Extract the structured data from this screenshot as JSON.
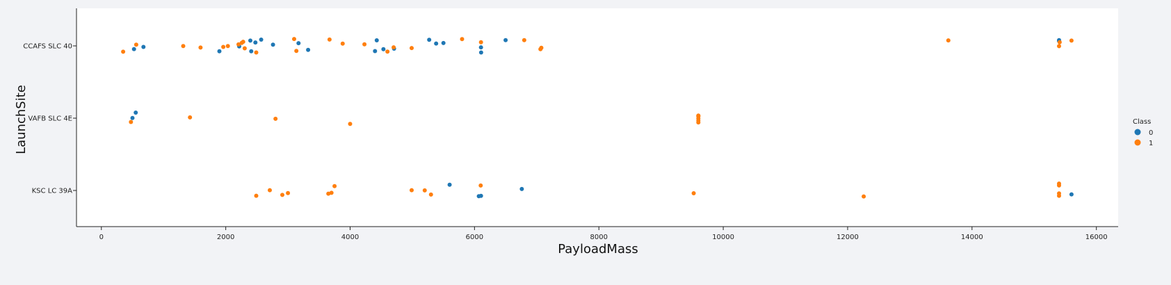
{
  "chart_data": {
    "type": "scatter",
    "title": "",
    "xlabel": "PayloadMass",
    "ylabel": "LaunchSite",
    "xlim": [
      -400,
      16350
    ],
    "x_ticks": [
      "0",
      "2000",
      "4000",
      "6000",
      "8000",
      "10000",
      "12000",
      "14000",
      "16000"
    ],
    "x_tick_values": [
      0,
      2000,
      4000,
      6000,
      8000,
      10000,
      12000,
      14000,
      16000
    ],
    "categories": [
      "CCAFS SLC 40",
      "VAFB SLC 4E",
      "KSC LC 39A"
    ],
    "grid": false,
    "legend": {
      "title": "Class",
      "placement": "right",
      "entries": [
        "0",
        "1"
      ]
    },
    "colors": {
      "0": "#1f77b4",
      "1": "#ff7f0e"
    },
    "series": [
      {
        "name": "0",
        "points": [
          [
            "CCAFS SLC 40",
            525
          ],
          [
            "CCAFS SLC 40",
            677
          ],
          [
            "CCAFS SLC 40",
            1898
          ],
          [
            "CCAFS SLC 40",
            2216
          ],
          [
            "CCAFS SLC 40",
            2395
          ],
          [
            "CCAFS SLC 40",
            2410
          ],
          [
            "CCAFS SLC 40",
            2477
          ],
          [
            "CCAFS SLC 40",
            2570
          ],
          [
            "CCAFS SLC 40",
            2760
          ],
          [
            "CCAFS SLC 40",
            3170
          ],
          [
            "CCAFS SLC 40",
            3325
          ],
          [
            "CCAFS SLC 40",
            4400
          ],
          [
            "CCAFS SLC 40",
            4428
          ],
          [
            "CCAFS SLC 40",
            4535
          ],
          [
            "CCAFS SLC 40",
            4707
          ],
          [
            "CCAFS SLC 40",
            5271
          ],
          [
            "CCAFS SLC 40",
            5383
          ],
          [
            "CCAFS SLC 40",
            5500
          ],
          [
            "CCAFS SLC 40",
            6104
          ],
          [
            "CCAFS SLC 40",
            6106
          ],
          [
            "CCAFS SLC 40",
            6500
          ],
          [
            "CCAFS SLC 40",
            15400
          ],
          [
            "CCAFS SLC 40",
            15400
          ],
          [
            "VAFB SLC 4E",
            500
          ],
          [
            "VAFB SLC 4E",
            553
          ],
          [
            "KSC LC 39A",
            5600
          ],
          [
            "KSC LC 39A",
            6070
          ],
          [
            "KSC LC 39A",
            6104
          ],
          [
            "KSC LC 39A",
            6761
          ],
          [
            "KSC LC 39A",
            15600
          ]
        ]
      },
      {
        "name": "1",
        "points": [
          [
            "CCAFS SLC 40",
            350
          ],
          [
            "CCAFS SLC 40",
            560
          ],
          [
            "CCAFS SLC 40",
            1316
          ],
          [
            "CCAFS SLC 40",
            1595
          ],
          [
            "CCAFS SLC 40",
            1960
          ],
          [
            "CCAFS SLC 40",
            2034
          ],
          [
            "CCAFS SLC 40",
            2205
          ],
          [
            "CCAFS SLC 40",
            2257
          ],
          [
            "CCAFS SLC 40",
            2280
          ],
          [
            "CCAFS SLC 40",
            2305
          ],
          [
            "CCAFS SLC 40",
            2490
          ],
          [
            "CCAFS SLC 40",
            3100
          ],
          [
            "CCAFS SLC 40",
            3136
          ],
          [
            "CCAFS SLC 40",
            3669
          ],
          [
            "CCAFS SLC 40",
            3880
          ],
          [
            "CCAFS SLC 40",
            4230
          ],
          [
            "CCAFS SLC 40",
            4600
          ],
          [
            "CCAFS SLC 40",
            4700
          ],
          [
            "CCAFS SLC 40",
            4990
          ],
          [
            "CCAFS SLC 40",
            5800
          ],
          [
            "CCAFS SLC 40",
            6104
          ],
          [
            "CCAFS SLC 40",
            6800
          ],
          [
            "CCAFS SLC 40",
            7060
          ],
          [
            "CCAFS SLC 40",
            7075
          ],
          [
            "CCAFS SLC 40",
            13620
          ],
          [
            "CCAFS SLC 40",
            15400
          ],
          [
            "CCAFS SLC 40",
            15410
          ],
          [
            "CCAFS SLC 40",
            15600
          ],
          [
            "VAFB SLC 4E",
            475
          ],
          [
            "VAFB SLC 4E",
            1425
          ],
          [
            "VAFB SLC 4E",
            2800
          ],
          [
            "VAFB SLC 4E",
            4000
          ],
          [
            "VAFB SLC 4E",
            9600
          ],
          [
            "VAFB SLC 4E",
            9600
          ],
          [
            "VAFB SLC 4E",
            9600
          ],
          [
            "VAFB SLC 4E",
            9600
          ],
          [
            "VAFB SLC 4E",
            9600
          ],
          [
            "VAFB SLC 4E",
            9600
          ],
          [
            "KSC LC 39A",
            2490
          ],
          [
            "KSC LC 39A",
            2708
          ],
          [
            "KSC LC 39A",
            2910
          ],
          [
            "KSC LC 39A",
            3000
          ],
          [
            "KSC LC 39A",
            3650
          ],
          [
            "KSC LC 39A",
            3700
          ],
          [
            "KSC LC 39A",
            3750
          ],
          [
            "KSC LC 39A",
            4990
          ],
          [
            "KSC LC 39A",
            5200
          ],
          [
            "KSC LC 39A",
            5300
          ],
          [
            "KSC LC 39A",
            6100
          ],
          [
            "KSC LC 39A",
            9525
          ],
          [
            "KSC LC 39A",
            12259
          ],
          [
            "KSC LC 39A",
            15400
          ],
          [
            "KSC LC 39A",
            15400
          ],
          [
            "KSC LC 39A",
            15400
          ],
          [
            "KSC LC 39A",
            15400
          ]
        ]
      }
    ]
  }
}
